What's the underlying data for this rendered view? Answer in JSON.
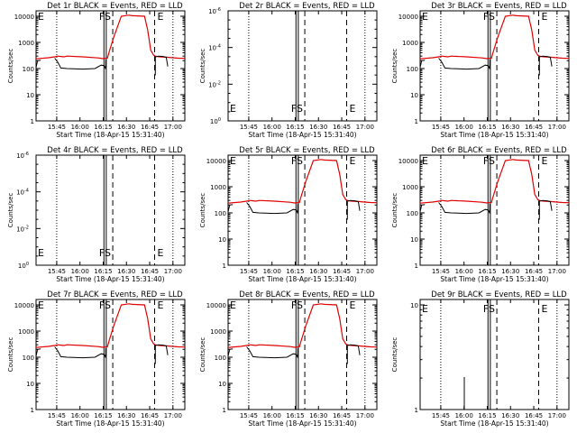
{
  "chart_data": [
    {
      "title": "Det 1r BLACK = Events, RED = LLD",
      "ylabel": "Counts/sec",
      "xlabel": "Start Time (18-Apr-15 15:31:40)",
      "scale": "log",
      "ylim": [
        1,
        10000
      ],
      "yticks": [
        "1",
        "10",
        "100",
        "1000",
        "10000"
      ],
      "xticks": [
        "15:45",
        "16:00",
        "16:15",
        "16:30",
        "16:45",
        "17:00"
      ],
      "markers": [
        "E",
        "FS",
        "E"
      ],
      "red": true,
      "black": "curve",
      "type": "line"
    },
    {
      "title": "Det 2r BLACK = Events, RED = LLD",
      "ylabel": "Counts/sec",
      "xlabel": "Start Time (18-Apr-15 15:31:40)",
      "scale": "exp",
      "yticks": [
        "10^0",
        "10^-2",
        "10^-4",
        "10^-6"
      ],
      "xticks": [
        "15:45",
        "16:00",
        "16:15",
        "16:30",
        "16:45",
        "17:00"
      ],
      "markers": [
        "E",
        "FS",
        "E"
      ],
      "red": false,
      "black": "none",
      "type": "line"
    },
    {
      "title": "Det 3r BLACK = Events, RED = LLD",
      "ylabel": "Counts/sec",
      "xlabel": "Start Time (18-Apr-15 15:31:40)",
      "scale": "log",
      "ylim": [
        1,
        10000
      ],
      "yticks": [
        "1",
        "10",
        "100",
        "1000",
        "10000"
      ],
      "xticks": [
        "15:45",
        "16:00",
        "16:15",
        "16:30",
        "16:45",
        "17:00"
      ],
      "markers": [
        "E",
        "FS",
        "E"
      ],
      "red": true,
      "black": "curve",
      "type": "line"
    },
    {
      "title": "Det 4r BLACK = Events, RED = LLD",
      "ylabel": "Counts/sec",
      "xlabel": "Start Time (18-Apr-15 15:31:40)",
      "scale": "exp",
      "yticks": [
        "10^0",
        "10^-2",
        "10^-4",
        "10^-6"
      ],
      "xticks": [
        "15:45",
        "16:00",
        "16:15",
        "16:30",
        "16:45",
        "17:00"
      ],
      "markers": [
        "E",
        "FS",
        "E"
      ],
      "red": false,
      "black": "none",
      "type": "line"
    },
    {
      "title": "Det 5r BLACK = Events, RED = LLD",
      "ylabel": "Counts/sec",
      "xlabel": "Start Time (18-Apr-15 15:31:40)",
      "scale": "log",
      "ylim": [
        1,
        10000
      ],
      "yticks": [
        "1",
        "10",
        "100",
        "1000",
        "10000"
      ],
      "xticks": [
        "15:45",
        "16:00",
        "16:15",
        "16:30",
        "16:45",
        "17:00"
      ],
      "markers": [
        "E",
        "FS",
        "E"
      ],
      "red": true,
      "black": "curve",
      "type": "line"
    },
    {
      "title": "Det 6r BLACK = Events, RED = LLD",
      "ylabel": "Counts/sec",
      "xlabel": "Start Time (18-Apr-15 15:31:40)",
      "scale": "log",
      "ylim": [
        1,
        10000
      ],
      "yticks": [
        "1",
        "10",
        "100",
        "1000",
        "10000"
      ],
      "xticks": [
        "15:45",
        "16:00",
        "16:15",
        "16:30",
        "16:45",
        "17:00"
      ],
      "markers": [
        "E",
        "FS",
        "E"
      ],
      "red": true,
      "black": "curve",
      "type": "line"
    },
    {
      "title": "Det 7r BLACK = Events, RED = LLD",
      "ylabel": "Counts/sec",
      "xlabel": "Start Time (18-Apr-15 15:31:40)",
      "scale": "log",
      "ylim": [
        1,
        10000
      ],
      "yticks": [
        "1",
        "10",
        "100",
        "1000",
        "10000"
      ],
      "xticks": [
        "15:45",
        "16:00",
        "16:15",
        "16:30",
        "16:45",
        "17:00"
      ],
      "markers": [
        "E",
        "FS",
        "E"
      ],
      "red": true,
      "black": "curve",
      "type": "line"
    },
    {
      "title": "Det 8r BLACK = Events, RED = LLD",
      "ylabel": "Counts/sec",
      "xlabel": "Start Time (18-Apr-15 15:31:40)",
      "scale": "log",
      "ylim": [
        1,
        10000
      ],
      "yticks": [
        "1",
        "10",
        "100",
        "1000",
        "10000"
      ],
      "xticks": [
        "15:45",
        "16:00",
        "16:15",
        "16:30",
        "16:45",
        "17:00"
      ],
      "markers": [
        "E",
        "FS",
        "E"
      ],
      "red": true,
      "black": "curve",
      "type": "line"
    },
    {
      "title": "Det 9r BLACK = Events, RED = LLD",
      "ylabel": "Counts/sec",
      "xlabel": "Start Time (18-Apr-15 15:31:40)",
      "scale": "log",
      "ylim": [
        1,
        10
      ],
      "yticks": [
        "1",
        "10"
      ],
      "xticks": [
        "15:45",
        "16:00",
        "16:15",
        "16:30",
        "16:45",
        "17:00"
      ],
      "markers": [
        "E",
        "FS",
        "E"
      ],
      "red": false,
      "black": "spike",
      "type": "line"
    }
  ],
  "series_values": {
    "time_minutes_from_15_31_40": [
      0,
      8,
      12,
      14,
      16,
      18,
      20,
      30,
      40,
      43,
      46,
      47,
      50,
      55,
      60,
      62,
      70,
      72,
      74,
      76,
      77,
      78,
      80,
      85,
      88,
      92,
      96
    ],
    "red_counts": [
      235,
      260,
      280,
      300,
      290,
      280,
      300,
      280,
      255,
      240,
      250,
      400,
      1500,
      10000,
      11000,
      10500,
      10000,
      3000,
      500,
      320,
      300,
      290,
      280,
      270,
      260,
      250,
      245
    ],
    "black_curve": [
      [
        12,
        250
      ],
      [
        14,
        175
      ],
      [
        16,
        105
      ],
      [
        20,
        100
      ],
      [
        30,
        95
      ],
      [
        38,
        100
      ],
      [
        42,
        135
      ],
      [
        44,
        130
      ],
      [
        45,
        95
      ],
      [
        45,
        220
      ]
    ],
    "black_tail": [
      [
        77,
        55
      ],
      [
        77,
        280
      ],
      [
        79,
        300
      ],
      [
        82,
        290
      ],
      [
        84,
        270
      ],
      [
        85,
        120
      ]
    ],
    "black_left": [
      [
        0,
        110
      ],
      [
        1,
        200
      ],
      [
        3,
        210
      ]
    ]
  },
  "colors": {
    "red": "#e00000",
    "black": "#000000",
    "axis": "#000000"
  }
}
